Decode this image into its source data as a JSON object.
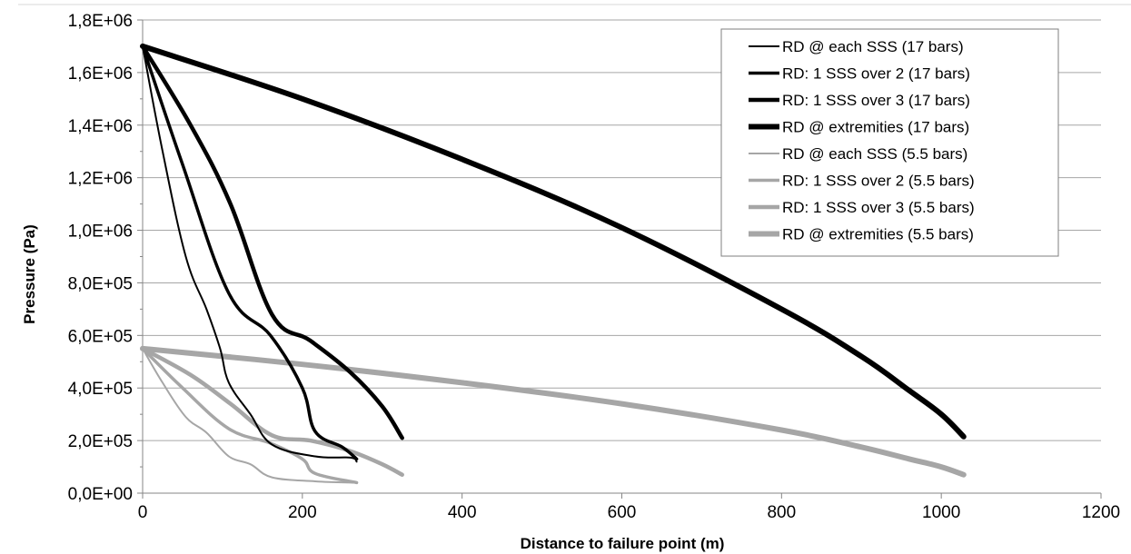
{
  "chart_data": {
    "type": "line",
    "xlabel": "Distance to failure point (m)",
    "ylabel": "Pressure (Pa)",
    "xlim": [
      0,
      1200
    ],
    "ylim": [
      0,
      1800000
    ],
    "x_ticks": [
      "0",
      "200",
      "400",
      "600",
      "800",
      "1000",
      "1200"
    ],
    "y_ticks": [
      "0,0E+00",
      "2,0E+05",
      "4,0E+05",
      "6,0E+05",
      "8,0E+05",
      "1,0E+06",
      "1,2E+06",
      "1,4E+06",
      "1,6E+06",
      "1,8E+06"
    ],
    "grid": "horizontal",
    "legend_position": "top-right",
    "series": [
      {
        "name": "RD @ each SSS (17 bars)",
        "color": "#000000",
        "width": 2,
        "points": [
          [
            0,
            1700000
          ],
          [
            25,
            1300000
          ],
          [
            54,
            900000
          ],
          [
            80,
            700000
          ],
          [
            97,
            550000
          ],
          [
            108,
            420000
          ],
          [
            135,
            300000
          ],
          [
            162,
            185000
          ],
          [
            216,
            140000
          ],
          [
            260,
            135000
          ],
          [
            268,
            120000
          ]
        ]
      },
      {
        "name": "RD: 1 SSS over 2 (17 bars)",
        "color": "#000000",
        "width": 3.5,
        "points": [
          [
            0,
            1700000
          ],
          [
            50,
            1250000
          ],
          [
            108,
            760000
          ],
          [
            160,
            600000
          ],
          [
            200,
            400000
          ],
          [
            216,
            235000
          ],
          [
            250,
            175000
          ],
          [
            268,
            130000
          ]
        ]
      },
      {
        "name": "RD: 1 SSS over 3 (17 bars)",
        "color": "#000000",
        "width": 4.5,
        "points": [
          [
            0,
            1700000
          ],
          [
            60,
            1400000
          ],
          [
            110,
            1100000
          ],
          [
            162,
            680000
          ],
          [
            210,
            580000
          ],
          [
            260,
            460000
          ],
          [
            300,
            330000
          ],
          [
            325,
            210000
          ]
        ]
      },
      {
        "name": "RD @ extremities (17 bars)",
        "color": "#000000",
        "width": 6,
        "points": [
          [
            0,
            1700000
          ],
          [
            200,
            1500000
          ],
          [
            400,
            1270000
          ],
          [
            600,
            1010000
          ],
          [
            800,
            700000
          ],
          [
            900,
            520000
          ],
          [
            960,
            390000
          ],
          [
            1000,
            300000
          ],
          [
            1028,
            215000
          ]
        ]
      },
      {
        "name": "RD @ each SSS (5.5 bars)",
        "color": "#a6a6a6",
        "width": 2,
        "points": [
          [
            0,
            550000
          ],
          [
            25,
            420000
          ],
          [
            54,
            290000
          ],
          [
            80,
            230000
          ],
          [
            108,
            140000
          ],
          [
            135,
            110000
          ],
          [
            162,
            60000
          ],
          [
            216,
            45000
          ],
          [
            260,
            40000
          ],
          [
            268,
            40000
          ]
        ]
      },
      {
        "name": "RD: 1 SSS over 2 (5.5 bars)",
        "color": "#a6a6a6",
        "width": 3.5,
        "points": [
          [
            0,
            550000
          ],
          [
            50,
            400000
          ],
          [
            108,
            245000
          ],
          [
            160,
            190000
          ],
          [
            200,
            130000
          ],
          [
            216,
            75000
          ],
          [
            268,
            40000
          ]
        ]
      },
      {
        "name": "RD: 1 SSS over 3 (5.5 bars)",
        "color": "#a6a6a6",
        "width": 4.5,
        "points": [
          [
            0,
            550000
          ],
          [
            60,
            450000
          ],
          [
            110,
            340000
          ],
          [
            162,
            220000
          ],
          [
            210,
            200000
          ],
          [
            260,
            160000
          ],
          [
            300,
            110000
          ],
          [
            325,
            70000
          ]
        ]
      },
      {
        "name": "RD @ extremities (5.5 bars)",
        "color": "#a6a6a6",
        "width": 6,
        "points": [
          [
            0,
            550000
          ],
          [
            200,
            490000
          ],
          [
            400,
            420000
          ],
          [
            600,
            340000
          ],
          [
            800,
            240000
          ],
          [
            900,
            175000
          ],
          [
            960,
            130000
          ],
          [
            1000,
            100000
          ],
          [
            1028,
            70000
          ]
        ]
      }
    ]
  }
}
